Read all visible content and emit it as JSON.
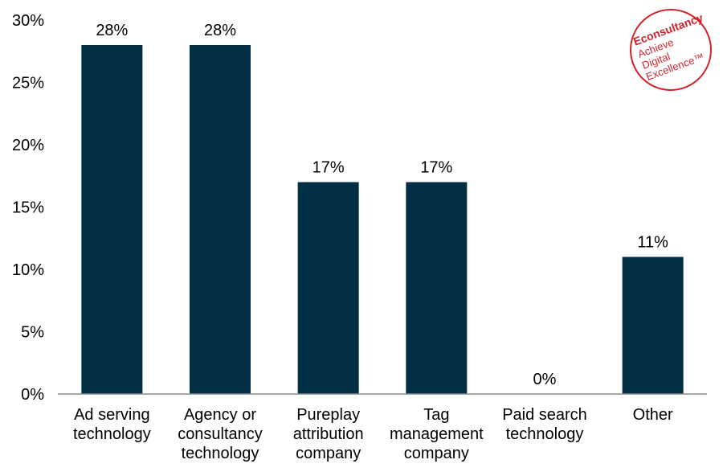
{
  "chart_data": {
    "type": "bar",
    "categories": [
      [
        "Ad serving",
        "technology"
      ],
      [
        "Agency or",
        "consultancy",
        "technology"
      ],
      [
        "Pureplay",
        "attribution",
        "company"
      ],
      [
        "Tag",
        "management",
        "company"
      ],
      [
        "Paid search",
        "technology"
      ],
      [
        "Other"
      ]
    ],
    "values": [
      28,
      28,
      17,
      17,
      0,
      11
    ],
    "data_labels": [
      "28%",
      "28%",
      "17%",
      "17%",
      "0%",
      "11%"
    ],
    "yticks": [
      "0%",
      "5%",
      "10%",
      "15%",
      "20%",
      "25%",
      "30%"
    ],
    "ylim": [
      0,
      30
    ],
    "grid": false,
    "legend": "none",
    "bar_color": "#022f44",
    "title": "",
    "xlabel": "",
    "ylabel": ""
  },
  "logo": {
    "brand": "Econsultancy",
    "tagline": [
      "Achieve",
      "Digital",
      "Excellence™"
    ],
    "color": "#d2232a"
  }
}
